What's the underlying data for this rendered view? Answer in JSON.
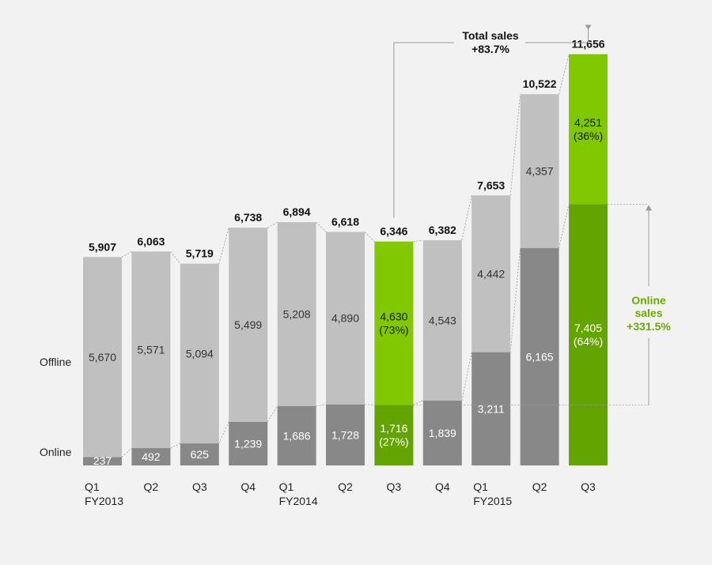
{
  "chart_data": {
    "type": "bar",
    "stacked": true,
    "categories": [
      {
        "quarter": "Q1",
        "year": "FY2013"
      },
      {
        "quarter": "Q2",
        "year": ""
      },
      {
        "quarter": "Q3",
        "year": ""
      },
      {
        "quarter": "Q4",
        "year": ""
      },
      {
        "quarter": "Q1",
        "year": "FY2014"
      },
      {
        "quarter": "Q2",
        "year": ""
      },
      {
        "quarter": "Q3",
        "year": ""
      },
      {
        "quarter": "Q4",
        "year": ""
      },
      {
        "quarter": "Q1",
        "year": "FY2015"
      },
      {
        "quarter": "Q2",
        "year": ""
      },
      {
        "quarter": "Q3",
        "year": ""
      }
    ],
    "series": [
      {
        "name": "Online",
        "values": [
          237,
          492,
          625,
          1239,
          1686,
          1728,
          1716,
          1839,
          3211,
          6165,
          7405
        ],
        "labels": [
          "237",
          "492",
          "625",
          "1,239",
          "1,686",
          "1,728",
          "1,716\n(27%)",
          "1,839",
          "3,211",
          "6,165",
          "7,405\n(64%)"
        ]
      },
      {
        "name": "Offline",
        "values": [
          5670,
          5571,
          5094,
          5499,
          5208,
          4890,
          4630,
          4543,
          4442,
          4357,
          4251
        ],
        "labels": [
          "5,670",
          "5,571",
          "5,094",
          "5,499",
          "5,208",
          "4,890",
          "4,630\n(73%)",
          "4,543",
          "4,442",
          "4,357",
          "4,251\n(36%)"
        ]
      }
    ],
    "totals": [
      5907,
      6063,
      5719,
      6738,
      6894,
      6618,
      6346,
      6382,
      7653,
      10522,
      11656
    ],
    "total_labels": [
      "5,907",
      "6,063",
      "5,719",
      "6,738",
      "6,894",
      "6,618",
      "6,346",
      "6,382",
      "7,653",
      "10,522",
      "11,656"
    ],
    "highlighted": [
      6,
      10
    ],
    "row_labels": {
      "offline": "Offline",
      "online": "Online"
    },
    "annotations": {
      "total_sales": {
        "title": "Total sales",
        "value": "+83.7%",
        "from_index": 6,
        "to_index": 10
      },
      "online_sales": {
        "title": "Online",
        "title2": "sales",
        "value": "+331.5%",
        "from_index": 6,
        "to_index": 10
      }
    },
    "ylim": [
      0,
      12000
    ],
    "colors": {
      "online": "#888888",
      "offline": "#c0c0c0",
      "online_highlight": "#64a400",
      "offline_highlight": "#82c800",
      "connector": "#999999",
      "annotation_green": "#6aaa00",
      "background": "#f2f2f2"
    }
  }
}
